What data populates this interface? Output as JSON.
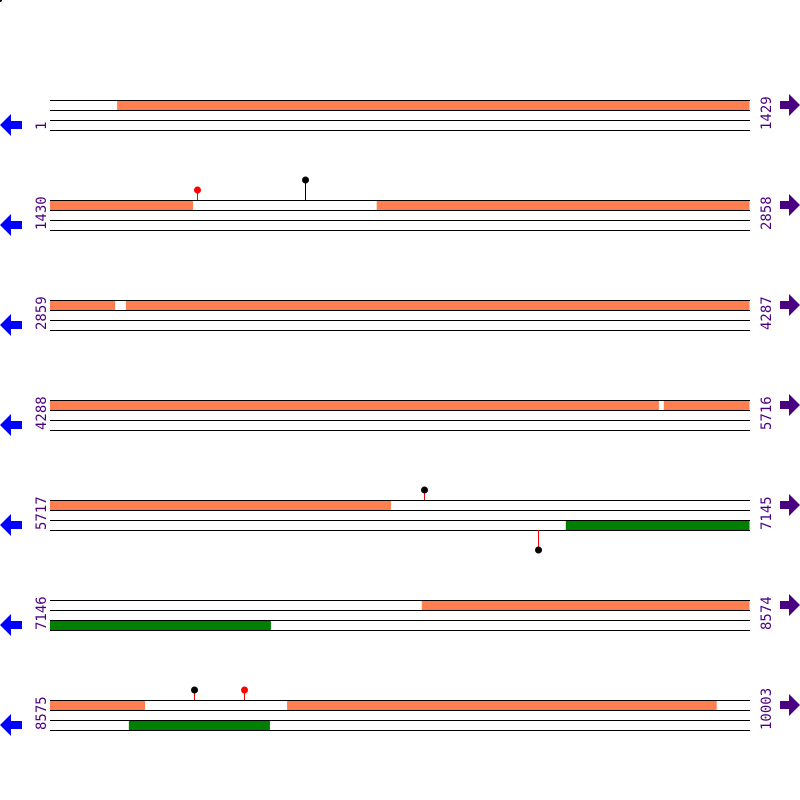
{
  "colors": {
    "forward_feature": "#ff7f50",
    "reverse_feature": "#008000",
    "label": "#4b0082",
    "left_arrow": "#0000ff",
    "right_arrow": "#4b0082",
    "pin_red": "#ff0000",
    "pin_black": "#000000"
  },
  "bp_per_row": 1429,
  "rows": [
    {
      "start_label": "1",
      "end_label": "1429",
      "start": 1,
      "forward": [
        [
          138,
          1429
        ]
      ],
      "reverse": [],
      "pins": []
    },
    {
      "start_label": "1430",
      "end_label": "2858",
      "start": 1430,
      "forward": [
        [
          1430,
          1722
        ],
        [
          2097,
          2858
        ]
      ],
      "reverse": [],
      "pins": [
        {
          "pos": 1730,
          "strand": "forward",
          "level": 1,
          "head": "red",
          "stem": "red"
        },
        {
          "pos": 1950,
          "strand": "forward",
          "level": 2,
          "head": "black",
          "stem": "black"
        }
      ]
    },
    {
      "start_label": "2859",
      "end_label": "4287",
      "start": 2859,
      "forward": [
        [
          2859,
          2992
        ],
        [
          3014,
          4287
        ]
      ],
      "reverse": [],
      "pins": []
    },
    {
      "start_label": "4288",
      "end_label": "5716",
      "start": 4288,
      "forward": [
        [
          4288,
          5531
        ],
        [
          5541,
          5716
        ]
      ],
      "reverse": [],
      "pins": []
    },
    {
      "start_label": "5717",
      "end_label": "7145",
      "start": 5717,
      "forward": [
        [
          5717,
          6413
        ]
      ],
      "reverse": [
        [
          6770,
          7145
        ]
      ],
      "pins": [
        {
          "pos": 6480,
          "strand": "forward",
          "level": 1,
          "head": "black",
          "stem": "red"
        },
        {
          "pos": 6713,
          "strand": "reverse",
          "level": 2,
          "head": "black",
          "stem": "red"
        }
      ]
    },
    {
      "start_label": "7146",
      "end_label": "8574",
      "start": 7146,
      "forward": [
        [
          7905,
          8574
        ]
      ],
      "reverse": [
        [
          7146,
          7597
        ]
      ],
      "pins": []
    },
    {
      "start_label": "8575",
      "end_label": "10003",
      "start": 8575,
      "forward": [
        [
          8575,
          8769
        ],
        [
          9059,
          9936
        ]
      ],
      "reverse": [
        [
          8736,
          9024
        ]
      ],
      "pins": [
        {
          "pos": 8869,
          "strand": "forward",
          "level": 1,
          "head": "black",
          "stem": "red"
        },
        {
          "pos": 8971,
          "strand": "forward",
          "level": 1,
          "head": "red",
          "stem": "red"
        }
      ]
    }
  ]
}
